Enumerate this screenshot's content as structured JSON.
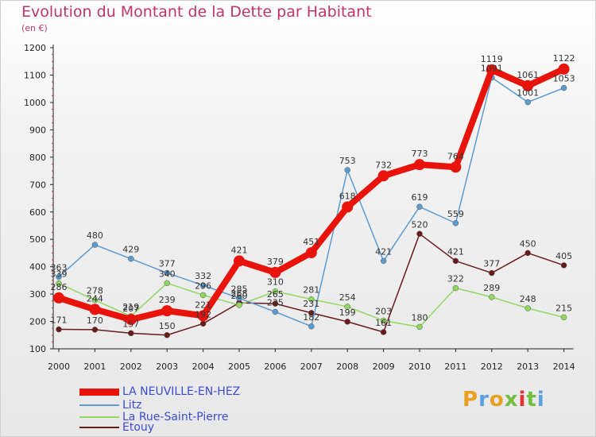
{
  "title": "Evolution du Montant de la Dette par Habitant",
  "subtitle": "(en €)",
  "brand": "Proxiti",
  "chart_data": {
    "type": "line",
    "title": "Evolution du Montant de la Dette par Habitant",
    "ylabel": "(en €)",
    "xlabel": "",
    "ylim": [
      100,
      1200
    ],
    "yticks": [
      100,
      200,
      300,
      400,
      500,
      600,
      700,
      800,
      900,
      1000,
      1100,
      1200
    ],
    "grid": false,
    "legend_position": "bottom-left",
    "categories": [
      "2000",
      "2001",
      "2002",
      "2003",
      "2004",
      "2005",
      "2006",
      "2007",
      "2008",
      "2009",
      "2010",
      "2011",
      "2012",
      "2013",
      "2014"
    ],
    "series": [
      {
        "name": "LA NEUVILLE-EN-HEZ",
        "color": "#e8140c",
        "width": 8,
        "marker": 7,
        "values": [
          286,
          244,
          207,
          239,
          221,
          421,
          379,
          451,
          618,
          732,
          773,
          764,
          1119,
          1061,
          1122
        ]
      },
      {
        "name": "Litz",
        "color": "#5b9bd0",
        "width": 1.5,
        "marker": 3.5,
        "values": [
          363,
          480,
          429,
          377,
          332,
          285,
          235,
          182,
          753,
          421,
          619,
          559,
          1091,
          1001,
          1053
        ]
      },
      {
        "name": "La Rue-Saint-Pierre",
        "color": "#90d860",
        "width": 1.5,
        "marker": 3.5,
        "values": [
          339,
          278,
          219,
          340,
          296,
          260,
          310,
          281,
          254,
          203,
          180,
          322,
          289,
          248,
          215
        ]
      },
      {
        "name": "Etouy",
        "color": "#6b1a1a",
        "width": 1.5,
        "marker": 3.5,
        "values": [
          171,
          170,
          157,
          150,
          192,
          268,
          265,
          231,
          199,
          161,
          520,
          421,
          377,
          450,
          405
        ]
      }
    ]
  },
  "brand_colors": [
    "#e8a020",
    "#5aa0e0",
    "#e8a020",
    "#70c040",
    "#e83030",
    "#70c040",
    "#5aa0e0"
  ]
}
